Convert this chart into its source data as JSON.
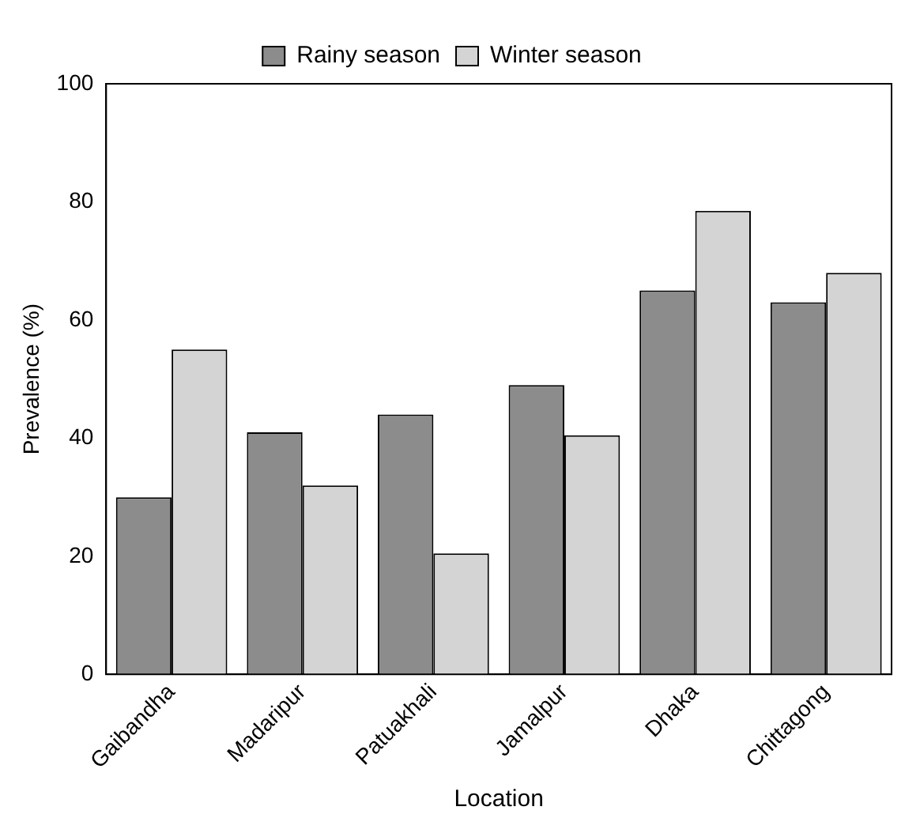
{
  "chart_data": {
    "type": "bar",
    "xlabel": "Location",
    "ylabel": "Prevalence (%)",
    "categories": [
      "Gaibandha",
      "Madaripur",
      "Patuakhali",
      "Jamalpur",
      "Dhaka",
      "Chittagong"
    ],
    "series": [
      {
        "name": "Rainy season",
        "color": "#8c8c8c",
        "values": [
          30,
          41,
          44,
          49,
          65,
          63
        ]
      },
      {
        "name": "Winter season",
        "color": "#d4d4d4",
        "values": [
          55,
          32,
          20.5,
          40.5,
          78.5,
          68
        ]
      }
    ],
    "ylim": [
      0,
      100
    ],
    "yticks": [
      0,
      20,
      40,
      60,
      80,
      100
    ],
    "grid": false,
    "legend": "top"
  }
}
